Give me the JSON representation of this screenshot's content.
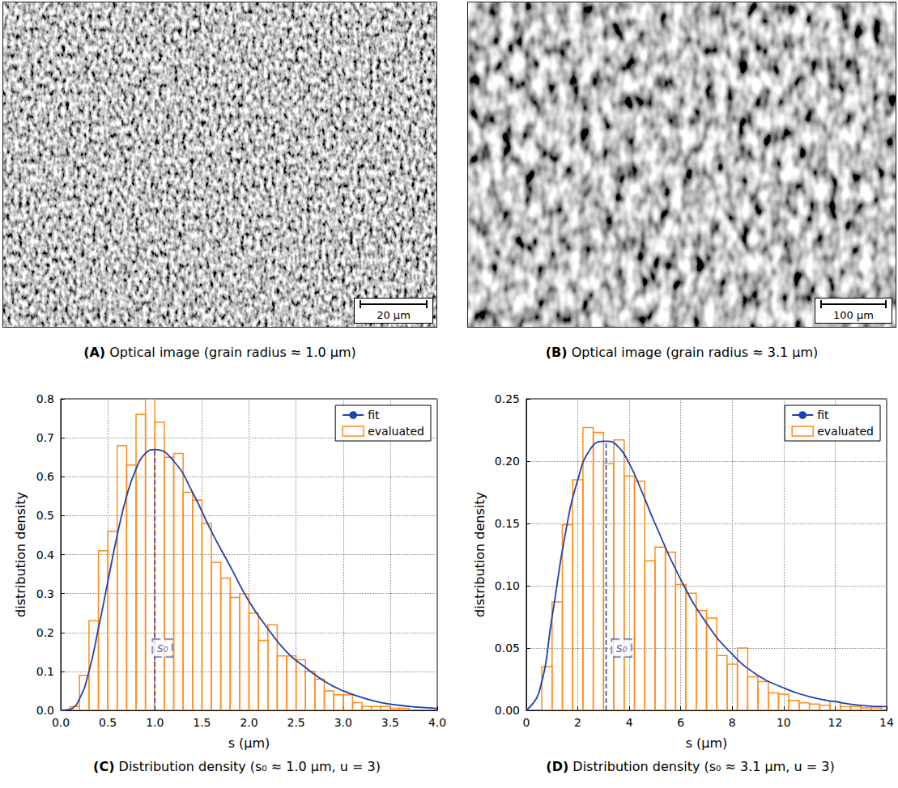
{
  "panels": [
    {
      "panel": "(A)",
      "type": "image",
      "caption": "Optical image (grain radius ≈ 1.0 µm)",
      "scale_bar": "20 µm"
    },
    {
      "panel": "(B)",
      "type": "image",
      "caption": "Optical image (grain radius ≈ 3.1 µm)",
      "scale_bar": "100 µm"
    }
  ],
  "chart_data": [
    {
      "panel": "(C)",
      "type": "histogram",
      "title": "Distribution density (s₀ ≈ 1.0 µm, u = 3)",
      "x_label": "s (µm)",
      "y_label": "distribution density",
      "xlim": [
        0,
        4
      ],
      "ylim": [
        0,
        0.8
      ],
      "xticks": [
        {
          "value": 0,
          "label": "0.0"
        },
        0.5,
        {
          "value": 1,
          "label": "1.0"
        },
        1.5,
        {
          "value": 2,
          "label": "2.0"
        },
        2.5,
        {
          "value": 3,
          "label": "3.0"
        },
        3.5,
        {
          "value": 4,
          "label": "4.0"
        }
      ],
      "yticks": [
        {
          "value": 0,
          "label": "0.0"
        },
        0.1,
        0.2,
        0.3,
        0.4,
        0.5,
        0.6,
        0.7,
        0.8
      ],
      "grid": true,
      "legend": "upper right",
      "series": [
        {
          "name": "fit",
          "type": "line",
          "color": "#1f3fb4",
          "x": [
            0,
            0.1,
            0.2,
            0.3,
            0.4,
            0.5,
            0.6,
            0.7,
            0.8,
            0.9,
            1.0,
            1.2,
            1.4,
            1.6,
            1.8,
            2.0,
            2.2,
            2.4,
            2.6,
            2.8,
            3.0,
            3.2,
            3.4,
            3.6,
            3.8,
            4.0
          ],
          "values": [
            0,
            0.003,
            0.03,
            0.1,
            0.21,
            0.33,
            0.45,
            0.55,
            0.62,
            0.66,
            0.67,
            0.64,
            0.56,
            0.46,
            0.37,
            0.28,
            0.21,
            0.15,
            0.11,
            0.075,
            0.05,
            0.033,
            0.02,
            0.013,
            0.008,
            0.005
          ]
        },
        {
          "name": "evaluated",
          "type": "histogram",
          "color": "#ff8c1a",
          "bins": [
            0.1,
            0.2,
            0.3,
            0.4,
            0.5,
            0.6,
            0.7,
            0.8,
            0.9,
            1.0,
            1.1,
            1.2,
            1.3,
            1.4,
            1.5,
            1.6,
            1.7,
            1.8,
            1.9,
            2.0,
            2.1,
            2.2,
            2.3,
            2.4,
            2.5,
            2.6,
            2.7,
            2.8,
            2.9,
            3.0,
            3.1,
            3.2,
            3.3,
            3.4,
            3.5,
            3.6,
            3.7
          ],
          "values": [
            0.01,
            0.09,
            0.23,
            0.41,
            0.46,
            0.68,
            0.63,
            0.76,
            0.8,
            0.74,
            0.65,
            0.66,
            0.56,
            0.54,
            0.48,
            0.38,
            0.34,
            0.29,
            0.3,
            0.25,
            0.18,
            0.22,
            0.14,
            0.14,
            0.13,
            0.1,
            0.08,
            0.05,
            0.04,
            0.04,
            0.02,
            0.01,
            0.01,
            0.01,
            0.005,
            0.005
          ]
        }
      ],
      "s0_line": {
        "x": 1.0,
        "y": 0.67
      },
      "annotations": [
        {
          "text": "s₀",
          "x": 1.08,
          "y": 0.16
        }
      ]
    },
    {
      "panel": "(D)",
      "type": "histogram",
      "title": "Distribution density (s₀ ≈ 3.1 µm, u = 3)",
      "x_label": "s (µm)",
      "y_label": "distribution density",
      "xlim": [
        0,
        14
      ],
      "ylim": [
        0,
        0.25
      ],
      "xticks": [
        0,
        2,
        4,
        6,
        8,
        10,
        12,
        14
      ],
      "yticks": [
        {
          "value": 0,
          "label": "0.00"
        },
        0.05,
        {
          "value": 0.1,
          "label": "0.10"
        },
        0.15,
        {
          "value": 0.2,
          "label": "0.20"
        },
        0.25
      ],
      "grid": true,
      "legend": "upper right",
      "series": [
        {
          "name": "fit",
          "type": "line",
          "color": "#1f3fb4",
          "x": [
            0,
            0.5,
            1,
            1.5,
            2,
            2.5,
            3,
            3.1,
            3.5,
            4,
            4.5,
            5,
            6,
            7,
            8,
            9,
            10,
            11,
            12,
            13,
            14
          ],
          "values": [
            0,
            0.015,
            0.075,
            0.14,
            0.185,
            0.21,
            0.216,
            0.216,
            0.213,
            0.198,
            0.175,
            0.15,
            0.105,
            0.07,
            0.045,
            0.028,
            0.018,
            0.011,
            0.007,
            0.004,
            0.003
          ]
        },
        {
          "name": "evaluated",
          "type": "histogram",
          "color": "#ff8c1a",
          "bins": [
            0.6,
            1.0,
            1.4,
            1.8,
            2.2,
            2.6,
            3.0,
            3.4,
            3.8,
            4.2,
            4.6,
            5.0,
            5.4,
            5.8,
            6.2,
            6.6,
            7.0,
            7.4,
            7.8,
            8.2,
            8.6,
            9.0,
            9.4,
            9.8,
            10.2,
            10.6,
            11.0,
            11.4,
            11.8,
            12.2,
            12.6,
            13.0,
            13.4,
            13.8
          ],
          "values": [
            0.035,
            0.087,
            0.149,
            0.185,
            0.227,
            0.223,
            0.198,
            0.217,
            0.188,
            0.184,
            0.12,
            0.131,
            0.127,
            0.101,
            0.094,
            0.08,
            0.074,
            0.044,
            0.037,
            0.05,
            0.027,
            0.023,
            0.014,
            0.013,
            0.008,
            0.006,
            0.005,
            0.004,
            0.007,
            0.003,
            0.003,
            0.002,
            0.002
          ]
        }
      ],
      "s0_line": {
        "x": 3.1,
        "y": 0.216
      },
      "annotations": [
        {
          "text": "s₀",
          "x": 3.7,
          "y": 0.05
        }
      ]
    }
  ]
}
